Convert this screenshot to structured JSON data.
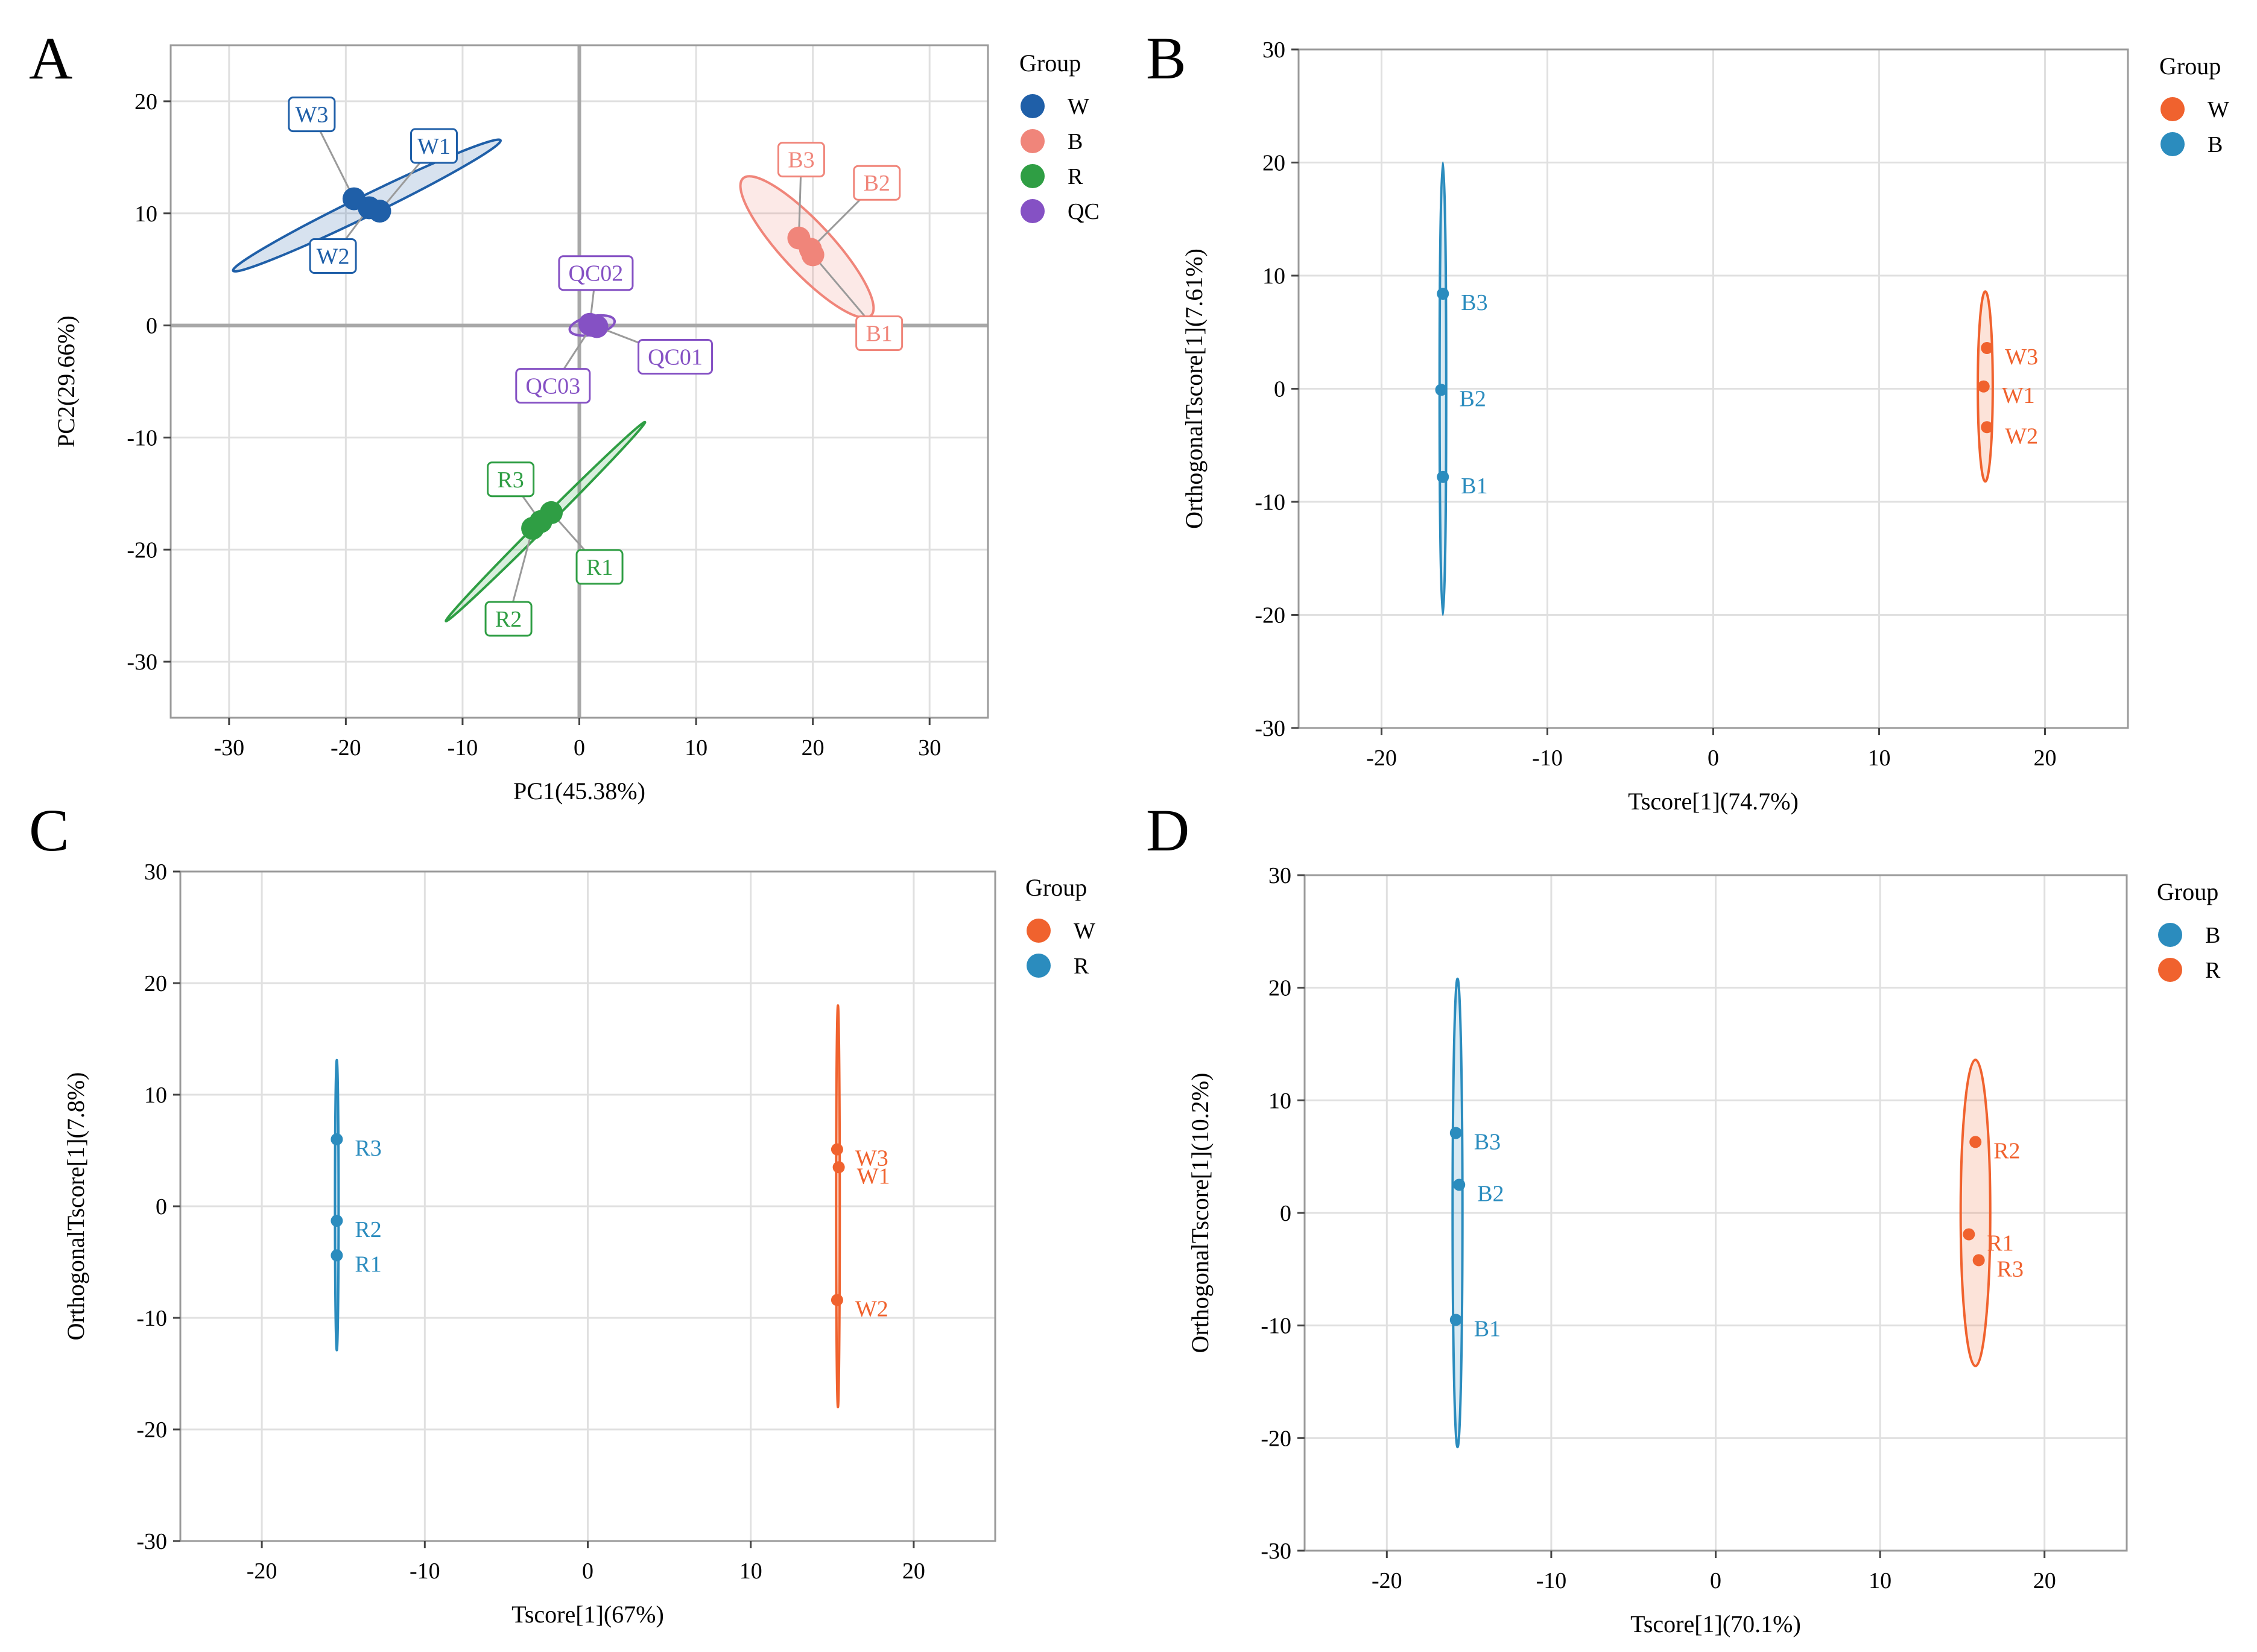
{
  "chart_data": [
    {
      "panel": "A",
      "type": "scatter",
      "xlabel": "PC1(45.38%)",
      "ylabel": "PC2(29.66%)",
      "xlim": [
        -35,
        35
      ],
      "ylim": [
        -35,
        25
      ],
      "xticks": [
        -30,
        -20,
        -10,
        0,
        10,
        20,
        30
      ],
      "yticks": [
        -30,
        -20,
        -10,
        0,
        10,
        20
      ],
      "zero_lines": true,
      "labels_boxed": true,
      "legend": {
        "title": "Group",
        "items": [
          "W",
          "B",
          "R",
          "QC"
        ]
      },
      "series": [
        {
          "name": "W",
          "color": "#1f5fa8",
          "points": [
            {
              "label": "W1",
              "x": -17.1,
              "y": 10.2
            },
            {
              "label": "W2",
              "x": -18.0,
              "y": 10.5
            },
            {
              "label": "W3",
              "x": -19.3,
              "y": 11.3
            }
          ],
          "ellipse": {
            "cx": -18.2,
            "cy": 10.7,
            "rx": 13.0,
            "ry": 0.9,
            "angle_deg": 26
          }
        },
        {
          "name": "B",
          "color": "#f0857a",
          "points": [
            {
              "label": "B1",
              "x": 20.0,
              "y": 6.3
            },
            {
              "label": "B2",
              "x": 19.8,
              "y": 6.8
            },
            {
              "label": "B3",
              "x": 18.8,
              "y": 7.8
            }
          ],
          "ellipse": {
            "cx": 19.5,
            "cy": 7.0,
            "rx": 8.2,
            "ry": 2.2,
            "angle_deg": -47
          }
        },
        {
          "name": "R",
          "color": "#2f9e44",
          "points": [
            {
              "label": "R1",
              "x": -2.4,
              "y": -16.7
            },
            {
              "label": "R2",
              "x": -4.0,
              "y": -18.1
            },
            {
              "label": "R3",
              "x": -3.3,
              "y": -17.5
            }
          ],
          "ellipse": {
            "cx": -2.9,
            "cy": -17.5,
            "rx": 12.3,
            "ry": 0.4,
            "angle_deg": 45
          }
        },
        {
          "name": "QC",
          "color": "#8551c4",
          "points": [
            {
              "label": "QC01",
              "x": 1.5,
              "y": -0.1
            },
            {
              "label": "QC02",
              "x": 0.9,
              "y": 0.1
            },
            {
              "label": "QC03",
              "x": 1.1,
              "y": 0.0
            }
          ],
          "ellipse": {
            "cx": 1.1,
            "cy": 0.0,
            "rx": 2.0,
            "ry": 0.8,
            "angle_deg": 12
          }
        }
      ]
    },
    {
      "panel": "B",
      "type": "scatter",
      "xlabel": "Tscore[1](74.7%)",
      "ylabel": "OrthogonalTscore[1](7.61%)",
      "xlim": [
        -25,
        25
      ],
      "ylim": [
        -30,
        30
      ],
      "xticks": [
        -20,
        -10,
        0,
        10,
        20
      ],
      "yticks": [
        -30,
        -20,
        -10,
        0,
        10,
        20,
        30
      ],
      "zero_lines": false,
      "labels_boxed": false,
      "legend": {
        "title": "Group",
        "items": [
          "W",
          "B"
        ]
      },
      "series": [
        {
          "name": "W",
          "color": "#f0622e",
          "points": [
            {
              "label": "W1",
              "x": 16.3,
              "y": 0.2
            },
            {
              "label": "W2",
              "x": 16.5,
              "y": -3.4
            },
            {
              "label": "W3",
              "x": 16.5,
              "y": 3.6
            }
          ],
          "ellipse": {
            "cx": 16.4,
            "cy": 0.2,
            "rx": 0.45,
            "ry": 8.4,
            "angle_deg": 0
          }
        },
        {
          "name": "B",
          "color": "#2b8cbe",
          "points": [
            {
              "label": "B1",
              "x": -16.3,
              "y": -7.8
            },
            {
              "label": "B2",
              "x": -16.4,
              "y": -0.1
            },
            {
              "label": "B3",
              "x": -16.3,
              "y": 8.4
            }
          ],
          "ellipse": {
            "cx": -16.3,
            "cy": 0.0,
            "rx": 0.2,
            "ry": 20.0,
            "angle_deg": 0
          }
        }
      ]
    },
    {
      "panel": "C",
      "type": "scatter",
      "xlabel": "Tscore[1](67%)",
      "ylabel": "OrthogonalTscore[1](7.8%)",
      "xlim": [
        -25,
        25
      ],
      "ylim": [
        -30,
        30
      ],
      "xticks": [
        -20,
        -10,
        0,
        10,
        20
      ],
      "yticks": [
        -30,
        -20,
        -10,
        0,
        10,
        20,
        30
      ],
      "zero_lines": false,
      "labels_boxed": false,
      "legend": {
        "title": "Group",
        "items": [
          "W",
          "R"
        ]
      },
      "series": [
        {
          "name": "W",
          "color": "#f0622e",
          "points": [
            {
              "label": "W1",
              "x": 15.4,
              "y": 3.5
            },
            {
              "label": "W2",
              "x": 15.3,
              "y": -8.4
            },
            {
              "label": "W3",
              "x": 15.3,
              "y": 5.1
            }
          ],
          "ellipse": {
            "cx": 15.35,
            "cy": 0.0,
            "rx": 0.1,
            "ry": 18.0,
            "angle_deg": 0
          }
        },
        {
          "name": "R",
          "color": "#2b8cbe",
          "points": [
            {
              "label": "R1",
              "x": -15.4,
              "y": -4.4
            },
            {
              "label": "R2",
              "x": -15.4,
              "y": -1.3
            },
            {
              "label": "R3",
              "x": -15.4,
              "y": 6.0
            }
          ],
          "ellipse": {
            "cx": -15.4,
            "cy": 0.1,
            "rx": 0.08,
            "ry": 13.0,
            "angle_deg": 0
          }
        }
      ]
    },
    {
      "panel": "D",
      "type": "scatter",
      "xlabel": "Tscore[1](70.1%)",
      "ylabel": "OrthogonalTscore[1](10.2%)",
      "xlim": [
        -25,
        25
      ],
      "ylim": [
        -30,
        30
      ],
      "xticks": [
        -20,
        -10,
        0,
        10,
        20
      ],
      "yticks": [
        -30,
        -20,
        -10,
        0,
        10,
        20,
        30
      ],
      "zero_lines": false,
      "labels_boxed": false,
      "legend": {
        "title": "Group",
        "items": [
          "B",
          "R"
        ]
      },
      "series": [
        {
          "name": "B",
          "color": "#2b8cbe",
          "points": [
            {
              "label": "B1",
              "x": -15.8,
              "y": -9.5
            },
            {
              "label": "B2",
              "x": -15.6,
              "y": 2.5
            },
            {
              "label": "B3",
              "x": -15.8,
              "y": 7.1
            }
          ],
          "ellipse": {
            "cx": -15.7,
            "cy": 0.0,
            "rx": 0.3,
            "ry": 20.8,
            "angle_deg": 0
          }
        },
        {
          "name": "R",
          "color": "#f0622e",
          "points": [
            {
              "label": "R1",
              "x": 15.4,
              "y": -1.9
            },
            {
              "label": "R2",
              "x": 15.8,
              "y": 6.3
            },
            {
              "label": "R3",
              "x": 16.0,
              "y": -4.2
            }
          ],
          "ellipse": {
            "cx": 15.8,
            "cy": 0.0,
            "rx": 0.9,
            "ry": 13.6,
            "angle_deg": 0
          }
        }
      ]
    }
  ]
}
